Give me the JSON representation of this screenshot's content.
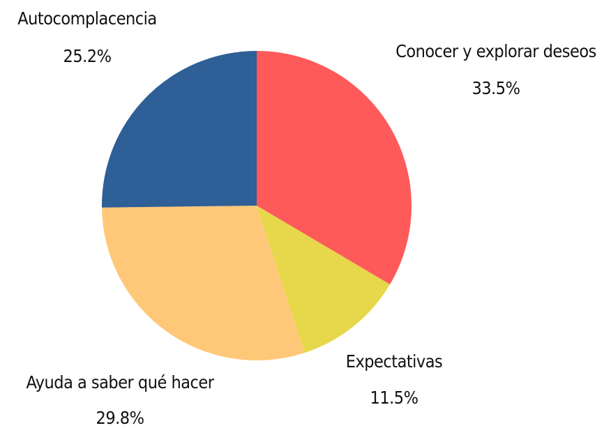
{
  "chart_data": {
    "type": "pie",
    "categories": [
      "Conocer y explorar deseos",
      "Expectativas",
      "Ayuda a saber qué hacer",
      "Autocomplacencia"
    ],
    "values": [
      33.5,
      11.5,
      29.8,
      25.2
    ],
    "value_labels": [
      "33.5%",
      "11.5%",
      "29.8%",
      "25.2%"
    ],
    "colors": [
      "#ff5a5a",
      "#e6d84a",
      "#fec878",
      "#2e5f96"
    ]
  }
}
